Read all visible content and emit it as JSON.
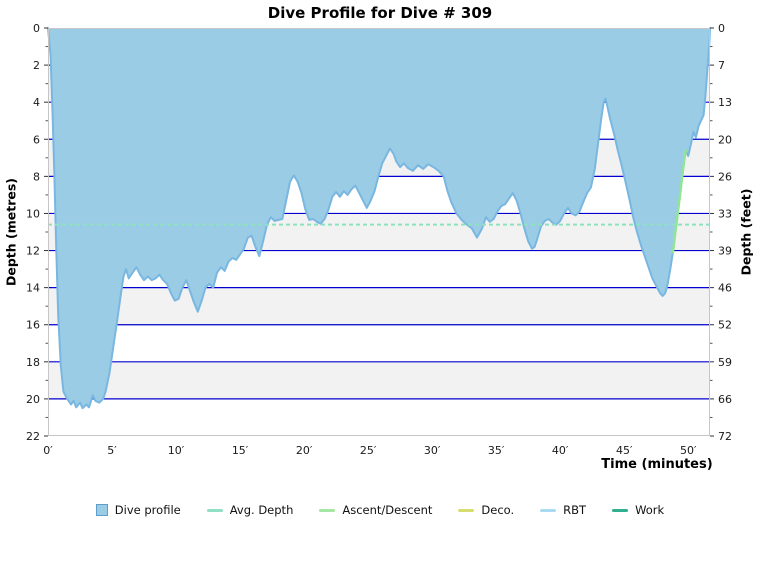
{
  "title": "Dive Profile for Dive # 309",
  "axes": {
    "left": {
      "title": "Depth (metres)",
      "tick_labels": [
        "0",
        "2",
        "4",
        "6",
        "8",
        "10",
        "12",
        "14",
        "16",
        "18",
        "20",
        "22"
      ]
    },
    "right": {
      "title": "Depth (feet)",
      "tick_labels": [
        "0",
        "7",
        "13",
        "20",
        "26",
        "33",
        "39",
        "46",
        "52",
        "59",
        "66",
        "72"
      ]
    },
    "bottom": {
      "title": "Time (minutes)",
      "tick_labels": [
        "0′",
        "5′",
        "10′",
        "15′",
        "20′",
        "25′",
        "30′",
        "35′",
        "40′",
        "45′",
        "50′"
      ],
      "tick_values": [
        0,
        5,
        10,
        15,
        20,
        25,
        30,
        35,
        40,
        45,
        50
      ]
    }
  },
  "colors": {
    "area_fill": "#9bcce6",
    "area_stroke": "#79b7e0",
    "gridline": "#0101cd",
    "band": "#f2f2f2",
    "plot_border": "#c6c6c6",
    "avg_depth_line": "#8ee2bd",
    "ascent_line": "#93e593",
    "tick": "#333333",
    "label_text": "#1a1a1a"
  },
  "legend": {
    "items": [
      {
        "id": "dive-profile",
        "label": "Dive profile",
        "swatch": "square",
        "color": "#9bcce6",
        "border": "#5f9ec9"
      },
      {
        "id": "avg-depth",
        "label": "Avg. Depth",
        "swatch": "line",
        "color": "#8fe0c4"
      },
      {
        "id": "ascent-descent",
        "label": "Ascent/Descent",
        "swatch": "line",
        "color": "#a5e6a5"
      },
      {
        "id": "deco",
        "label": "Deco.",
        "swatch": "line",
        "color": "#d9dd70"
      },
      {
        "id": "rbt",
        "label": "RBT",
        "swatch": "line",
        "color": "#a9daf2"
      },
      {
        "id": "work",
        "label": "Work",
        "swatch": "line",
        "color": "#30b08f"
      }
    ]
  },
  "chart_data": {
    "type": "area",
    "title": "Dive Profile for Dive # 309",
    "xlabel": "Time (minutes)",
    "ylabel_left": "Depth (metres)",
    "ylabel_right": "Depth (feet)",
    "xlim": [
      0,
      51.7
    ],
    "ylim_metres": [
      0,
      22
    ],
    "y_inverted": true,
    "grid_metres": [
      2,
      4,
      6,
      8,
      10,
      12,
      14,
      16,
      18,
      20
    ],
    "band_metres": [
      [
        2,
        4
      ],
      [
        6,
        8
      ],
      [
        10,
        12
      ],
      [
        14,
        16
      ],
      [
        18,
        20
      ]
    ],
    "avg_depth_metres": 10.6,
    "ascent_highlight_t": [
      48.75,
      49.85
    ],
    "series": [
      {
        "name": "Dive profile",
        "points": [
          [
            0,
            0
          ],
          [
            0.2,
            1.5
          ],
          [
            0.35,
            4.5
          ],
          [
            0.5,
            8
          ],
          [
            0.65,
            12
          ],
          [
            0.8,
            15.5
          ],
          [
            1,
            18.2
          ],
          [
            1.2,
            19.6
          ],
          [
            1.5,
            20
          ],
          [
            1.8,
            20.3
          ],
          [
            2,
            20.1
          ],
          [
            2.2,
            20.45
          ],
          [
            2.5,
            20.2
          ],
          [
            2.7,
            20.5
          ],
          [
            3,
            20.3
          ],
          [
            3.2,
            20.45
          ],
          [
            3.5,
            19.8
          ],
          [
            3.7,
            20.1
          ],
          [
            4,
            20.2
          ],
          [
            4.3,
            20
          ],
          [
            4.5,
            19.6
          ],
          [
            4.8,
            18.6
          ],
          [
            5.1,
            17.2
          ],
          [
            5.4,
            15.8
          ],
          [
            5.7,
            14.3
          ],
          [
            5.9,
            13.4
          ],
          [
            6.1,
            13
          ],
          [
            6.3,
            13.5
          ],
          [
            6.6,
            13.2
          ],
          [
            6.9,
            12.9
          ],
          [
            7.2,
            13.3
          ],
          [
            7.5,
            13.6
          ],
          [
            7.8,
            13.4
          ],
          [
            8.1,
            13.6
          ],
          [
            8.4,
            13.5
          ],
          [
            8.7,
            13.3
          ],
          [
            9,
            13.6
          ],
          [
            9.3,
            13.8
          ],
          [
            9.6,
            14.3
          ],
          [
            9.9,
            14.7
          ],
          [
            10.2,
            14.6
          ],
          [
            10.5,
            14
          ],
          [
            10.8,
            13.6
          ],
          [
            11.1,
            14.2
          ],
          [
            11.4,
            14.8
          ],
          [
            11.7,
            15.3
          ],
          [
            12,
            14.7
          ],
          [
            12.3,
            14
          ],
          [
            12.6,
            13.8
          ],
          [
            12.9,
            14
          ],
          [
            13.2,
            13.2
          ],
          [
            13.5,
            12.9
          ],
          [
            13.8,
            13.1
          ],
          [
            14.1,
            12.6
          ],
          [
            14.4,
            12.4
          ],
          [
            14.7,
            12.5
          ],
          [
            15,
            12.2
          ],
          [
            15.3,
            11.9
          ],
          [
            15.6,
            11.3
          ],
          [
            15.9,
            11.2
          ],
          [
            16.2,
            11.8
          ],
          [
            16.5,
            12.3
          ],
          [
            16.8,
            11.5
          ],
          [
            17.1,
            10.6
          ],
          [
            17.4,
            10.2
          ],
          [
            17.7,
            10.4
          ],
          [
            18,
            10.35
          ],
          [
            18.3,
            10.3
          ],
          [
            18.6,
            9.3
          ],
          [
            18.9,
            8.3
          ],
          [
            19.2,
            7.95
          ],
          [
            19.5,
            8.3
          ],
          [
            19.8,
            8.9
          ],
          [
            20.1,
            9.8
          ],
          [
            20.4,
            10.35
          ],
          [
            20.7,
            10.3
          ],
          [
            21,
            10.45
          ],
          [
            21.3,
            10.55
          ],
          [
            21.6,
            10.3
          ],
          [
            21.9,
            9.8
          ],
          [
            22.2,
            9.1
          ],
          [
            22.5,
            8.85
          ],
          [
            22.8,
            9.1
          ],
          [
            23.1,
            8.8
          ],
          [
            23.4,
            9
          ],
          [
            23.7,
            8.7
          ],
          [
            24,
            8.5
          ],
          [
            24.3,
            8.9
          ],
          [
            24.6,
            9.3
          ],
          [
            24.9,
            9.7
          ],
          [
            25.2,
            9.3
          ],
          [
            25.5,
            8.8
          ],
          [
            25.8,
            8
          ],
          [
            26.1,
            7.3
          ],
          [
            26.4,
            6.9
          ],
          [
            26.7,
            6.5
          ],
          [
            27,
            6.8
          ],
          [
            27.2,
            7.2
          ],
          [
            27.5,
            7.5
          ],
          [
            27.8,
            7.3
          ],
          [
            28.1,
            7.55
          ],
          [
            28.5,
            7.7
          ],
          [
            28.9,
            7.4
          ],
          [
            29.3,
            7.6
          ],
          [
            29.7,
            7.35
          ],
          [
            30.1,
            7.5
          ],
          [
            30.5,
            7.7
          ],
          [
            30.9,
            8
          ],
          [
            31.2,
            8.8
          ],
          [
            31.5,
            9.4
          ],
          [
            31.9,
            10
          ],
          [
            32.3,
            10.35
          ],
          [
            32.7,
            10.6
          ],
          [
            33.1,
            10.8
          ],
          [
            33.5,
            11.3
          ],
          [
            33.9,
            10.8
          ],
          [
            34.2,
            10.2
          ],
          [
            34.5,
            10.45
          ],
          [
            34.8,
            10.3
          ],
          [
            35.1,
            9.9
          ],
          [
            35.4,
            9.6
          ],
          [
            35.7,
            9.5
          ],
          [
            36,
            9.2
          ],
          [
            36.3,
            8.9
          ],
          [
            36.6,
            9.3
          ],
          [
            36.9,
            10
          ],
          [
            37.2,
            10.8
          ],
          [
            37.5,
            11.5
          ],
          [
            37.8,
            11.9
          ],
          [
            38,
            11.8
          ],
          [
            38.2,
            11.4
          ],
          [
            38.5,
            10.7
          ],
          [
            38.8,
            10.4
          ],
          [
            39.1,
            10.3
          ],
          [
            39.4,
            10.5
          ],
          [
            39.7,
            10.6
          ],
          [
            40,
            10.4
          ],
          [
            40.3,
            10
          ],
          [
            40.6,
            9.7
          ],
          [
            40.9,
            10
          ],
          [
            41.2,
            10.1
          ],
          [
            41.5,
            9.9
          ],
          [
            41.8,
            9.4
          ],
          [
            42.1,
            8.9
          ],
          [
            42.4,
            8.6
          ],
          [
            42.7,
            7.6
          ],
          [
            43,
            6
          ],
          [
            43.2,
            4.9
          ],
          [
            43.4,
            4
          ],
          [
            43.55,
            3.8
          ],
          [
            43.7,
            4.3
          ],
          [
            43.9,
            4.9
          ],
          [
            44.2,
            5.7
          ],
          [
            44.5,
            6.6
          ],
          [
            44.8,
            7.4
          ],
          [
            45.1,
            8.3
          ],
          [
            45.4,
            9.2
          ],
          [
            45.7,
            10.2
          ],
          [
            46,
            11
          ],
          [
            46.3,
            11.7
          ],
          [
            46.6,
            12.3
          ],
          [
            46.9,
            12.9
          ],
          [
            47.2,
            13.5
          ],
          [
            47.5,
            13.9
          ],
          [
            47.8,
            14.3
          ],
          [
            48,
            14.45
          ],
          [
            48.2,
            14.3
          ],
          [
            48.4,
            13.8
          ],
          [
            48.6,
            13
          ],
          [
            48.8,
            12.1
          ],
          [
            49,
            11
          ],
          [
            49.2,
            9.9
          ],
          [
            49.4,
            8.8
          ],
          [
            49.6,
            7.6
          ],
          [
            49.8,
            6.6
          ],
          [
            50,
            6.9
          ],
          [
            50.2,
            6.3
          ],
          [
            50.4,
            5.6
          ],
          [
            50.6,
            5.9
          ],
          [
            50.8,
            5.3
          ],
          [
            51,
            5
          ],
          [
            51.2,
            4.7
          ],
          [
            51.35,
            3.6
          ],
          [
            51.5,
            2.2
          ],
          [
            51.65,
            0.8
          ],
          [
            51.7,
            0
          ]
        ]
      }
    ]
  }
}
